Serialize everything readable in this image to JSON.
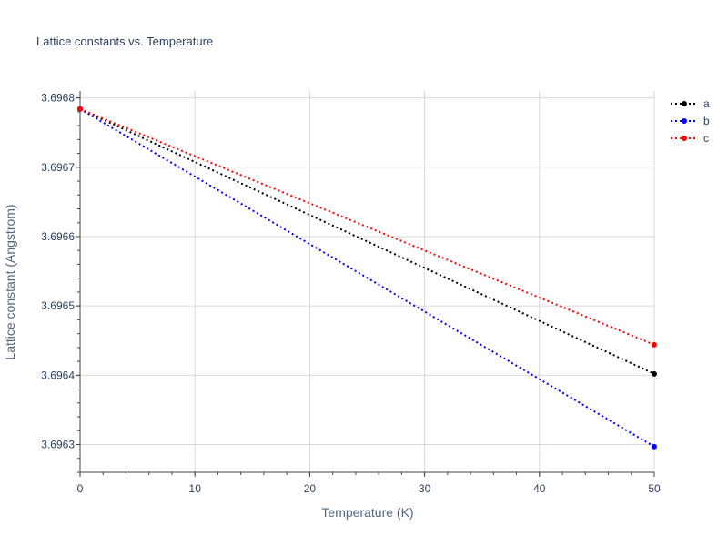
{
  "chart_data": {
    "type": "line",
    "title": "Lattice constants vs. Temperature",
    "xlabel": "Temperature (K)",
    "ylabel": "Lattice constant (Angstrom)",
    "xlim": [
      0,
      50
    ],
    "ylim": [
      3.69626,
      3.69681
    ],
    "x_ticks": [
      0,
      10,
      20,
      30,
      40,
      50
    ],
    "x_tick_labels": [
      "0",
      "10",
      "20",
      "30",
      "40",
      "50"
    ],
    "y_ticks": [
      3.6963,
      3.6964,
      3.6965,
      3.6966,
      3.6967,
      3.6968
    ],
    "y_tick_labels": [
      "3.6963",
      "3.6964",
      "3.6965",
      "3.6966",
      "3.6967",
      "3.6968"
    ],
    "grid": true,
    "legend_position": "top-right",
    "line_style": "dotted",
    "x": [
      0,
      50
    ],
    "series": [
      {
        "name": "a",
        "color": "#000000",
        "values": [
          3.696784,
          3.696402
        ]
      },
      {
        "name": "b",
        "color": "#0000ff",
        "values": [
          3.696784,
          3.696297
        ]
      },
      {
        "name": "c",
        "color": "#ff0000",
        "values": [
          3.696784,
          3.696444
        ]
      }
    ]
  }
}
